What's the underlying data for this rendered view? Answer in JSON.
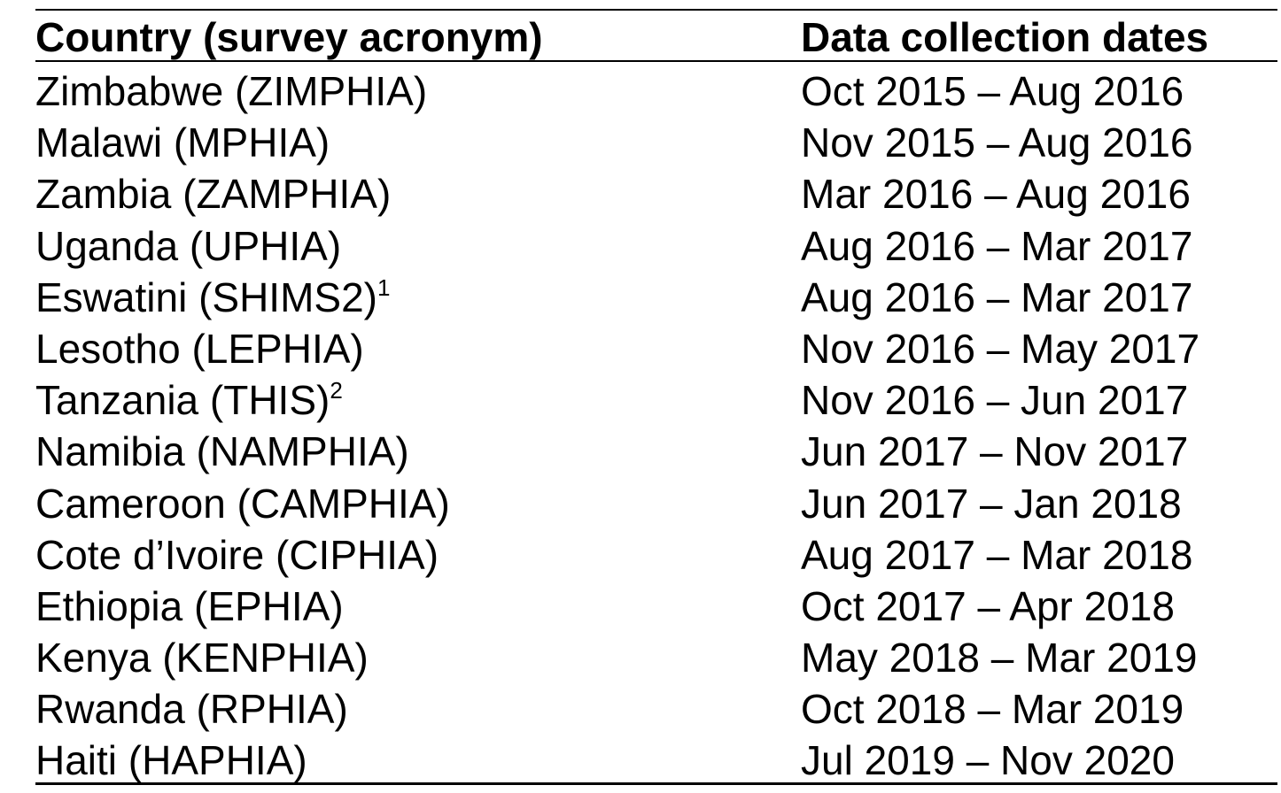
{
  "table": {
    "headers": {
      "country": "Country (survey acronym)",
      "dates": "Data collection dates"
    },
    "rows": [
      {
        "country": "Zimbabwe (ZIMPHIA)",
        "sup": "",
        "dates": "Oct 2015 – Aug 2016"
      },
      {
        "country": "Malawi (MPHIA)",
        "sup": "",
        "dates": "Nov 2015 – Aug 2016"
      },
      {
        "country": "Zambia (ZAMPHIA)",
        "sup": "",
        "dates": "Mar 2016 – Aug 2016"
      },
      {
        "country": "Uganda (UPHIA)",
        "sup": "",
        "dates": "Aug 2016 – Mar 2017"
      },
      {
        "country": "Eswatini (SHIMS2)",
        "sup": "1",
        "dates": "Aug 2016 – Mar 2017"
      },
      {
        "country": "Lesotho (LEPHIA)",
        "sup": "",
        "dates": "Nov 2016 – May 2017"
      },
      {
        "country": "Tanzania (THIS)",
        "sup": "2",
        "dates": "Nov 2016 – Jun 2017"
      },
      {
        "country": "Namibia (NAMPHIA)",
        "sup": "",
        "dates": "Jun 2017 – Nov 2017"
      },
      {
        "country": "Cameroon (CAMPHIA)",
        "sup": "",
        "dates": "Jun 2017 – Jan 2018"
      },
      {
        "country": "Cote d’Ivoire (CIPHIA)",
        "sup": "",
        "dates": "Aug 2017 – Mar 2018"
      },
      {
        "country": "Ethiopia (EPHIA)",
        "sup": "",
        "dates": "Oct 2017 – Apr 2018"
      },
      {
        "country": "Kenya (KENPHIA)",
        "sup": "",
        "dates": "May 2018 – Mar 2019"
      },
      {
        "country": "Rwanda (RPHIA)",
        "sup": "",
        "dates": "Oct 2018 – Mar 2019"
      },
      {
        "country": "Haiti (HAPHIA)",
        "sup": "",
        "dates": "Jul 2019 – Nov 2020"
      }
    ]
  }
}
